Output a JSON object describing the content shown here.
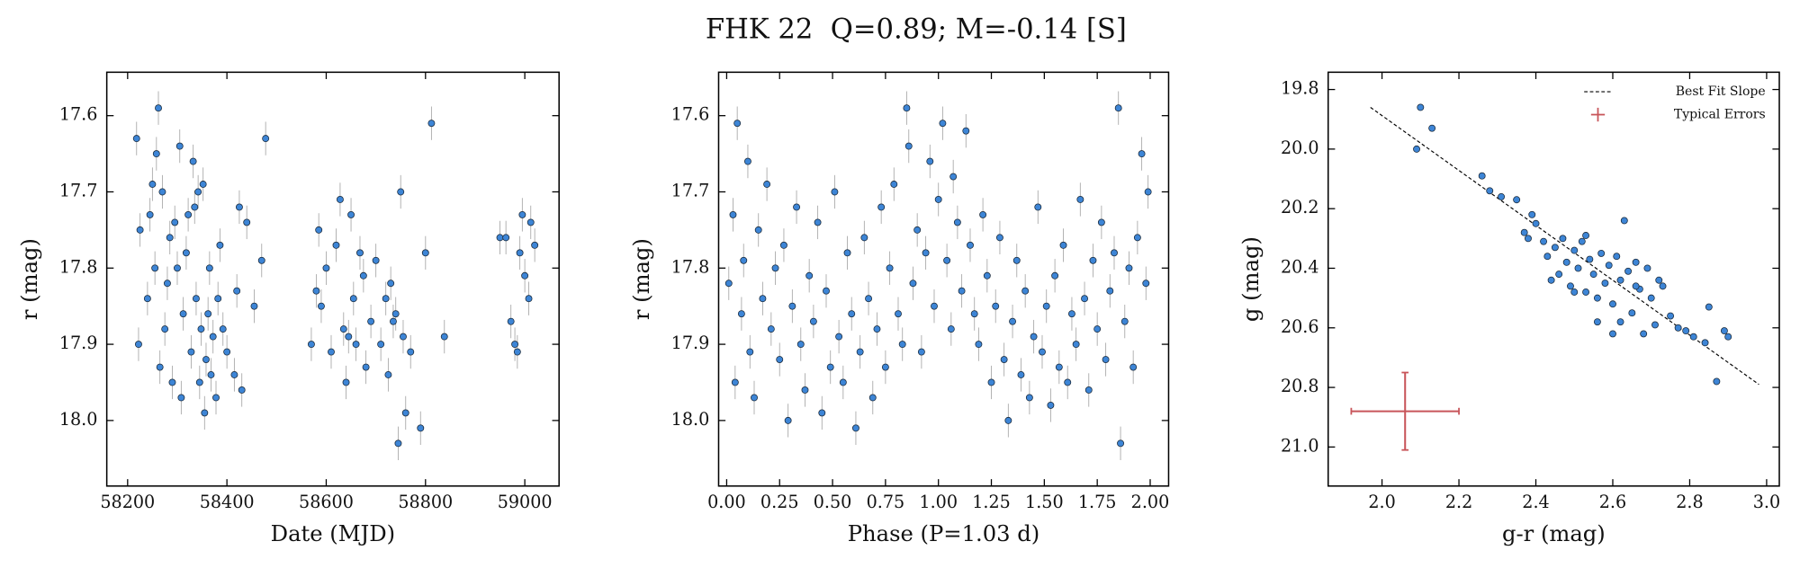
{
  "title": "FHK 22  Q=0.89; M=-0.14 [S]",
  "chart_data": [
    {
      "type": "scatter",
      "xlabel": "Date (MJD)",
      "ylabel": "r (mag)",
      "color": "#3d85d6",
      "yerr": 0.022,
      "xlim": [
        58158,
        59069
      ],
      "ylim": [
        18.086,
        17.543
      ],
      "xticks": [
        58200,
        58400,
        58600,
        58800,
        59000
      ],
      "yticks": [
        17.6,
        17.7,
        17.8,
        17.9,
        {
          "value": 18,
          "label": "18.0"
        }
      ],
      "x": [
        58218,
        58222,
        58225,
        58240,
        58245,
        58250,
        58255,
        58258,
        58262,
        58265,
        58270,
        58275,
        58280,
        58285,
        58290,
        58295,
        58300,
        58305,
        58308,
        58312,
        58318,
        58322,
        58328,
        58332,
        58335,
        58338,
        58342,
        58345,
        58348,
        58352,
        58355,
        58358,
        58362,
        58365,
        58368,
        58372,
        58378,
        58382,
        58386,
        58392,
        58400,
        58415,
        58420,
        58425,
        58430,
        58440,
        58455,
        58470,
        58478,
        58570,
        58580,
        58585,
        58590,
        58600,
        58610,
        58620,
        58628,
        58635,
        58640,
        58645,
        58650,
        58655,
        58660,
        58668,
        58675,
        58680,
        58690,
        58700,
        58710,
        58720,
        58725,
        58730,
        58735,
        58740,
        58745,
        58750,
        58755,
        58760,
        58770,
        58790,
        58800,
        58812,
        58838,
        58950,
        58962,
        58972,
        58980,
        58985,
        58990,
        58995,
        59000,
        59008,
        59012,
        59020
      ],
      "values": [
        17.63,
        17.9,
        17.75,
        17.84,
        17.73,
        17.69,
        17.8,
        17.65,
        17.59,
        17.93,
        17.7,
        17.88,
        17.82,
        17.76,
        17.95,
        17.74,
        17.8,
        17.64,
        17.97,
        17.86,
        17.78,
        17.73,
        17.91,
        17.66,
        17.72,
        17.84,
        17.7,
        17.95,
        17.88,
        17.69,
        17.99,
        17.92,
        17.86,
        17.8,
        17.94,
        17.89,
        17.97,
        17.84,
        17.77,
        17.88,
        17.91,
        17.94,
        17.83,
        17.72,
        17.96,
        17.74,
        17.85,
        17.79,
        17.63,
        17.9,
        17.83,
        17.75,
        17.85,
        17.8,
        17.91,
        17.77,
        17.71,
        17.88,
        17.95,
        17.89,
        17.73,
        17.84,
        17.9,
        17.78,
        17.81,
        17.93,
        17.87,
        17.79,
        17.9,
        17.84,
        17.94,
        17.82,
        17.87,
        17.86,
        18.03,
        17.7,
        17.89,
        17.99,
        17.91,
        18.01,
        17.78,
        17.61,
        17.89,
        17.76,
        17.76,
        17.87,
        17.9,
        17.91,
        17.78,
        17.73,
        17.81,
        17.84,
        17.74,
        17.77
      ]
    },
    {
      "type": "scatter",
      "xlabel": "Phase (P=1.03 d)",
      "ylabel": "r (mag)",
      "color": "#3d85d6",
      "yerr": 0.022,
      "xlim": [
        -0.038,
        2.087
      ],
      "ylim": [
        18.086,
        17.543
      ],
      "xticks": [
        {
          "value": 0,
          "label": "0.00"
        },
        {
          "value": 0.25,
          "label": "0.25"
        },
        {
          "value": 0.5,
          "label": "0.50"
        },
        {
          "value": 0.75,
          "label": "0.75"
        },
        {
          "value": 1,
          "label": "1.00"
        },
        {
          "value": 1.25,
          "label": "1.25"
        },
        {
          "value": 1.5,
          "label": "1.50"
        },
        {
          "value": 1.75,
          "label": "1.75"
        },
        {
          "value": 2,
          "label": "2.00"
        }
      ],
      "yticks": [
        17.6,
        17.7,
        17.8,
        17.9,
        {
          "value": 18,
          "label": "18.0"
        }
      ],
      "x": [
        0.01,
        0.03,
        0.04,
        0.05,
        0.07,
        0.08,
        0.1,
        0.11,
        0.13,
        0.15,
        0.17,
        0.19,
        0.21,
        0.23,
        0.25,
        0.27,
        0.29,
        0.31,
        0.33,
        0.35,
        0.37,
        0.39,
        0.41,
        0.43,
        0.45,
        0.47,
        0.49,
        0.51,
        0.53,
        0.55,
        0.57,
        0.59,
        0.61,
        0.63,
        0.65,
        0.67,
        0.69,
        0.71,
        0.73,
        0.75,
        0.77,
        0.79,
        0.81,
        0.83,
        0.85,
        0.86,
        0.88,
        0.9,
        0.92,
        0.94,
        0.96,
        0.98,
        1.0,
        1.02,
        1.04,
        1.06,
        1.07,
        1.09,
        1.11,
        1.13,
        1.15,
        1.17,
        1.19,
        1.21,
        1.23,
        1.25,
        1.27,
        1.29,
        1.31,
        1.33,
        1.35,
        1.37,
        1.39,
        1.41,
        1.43,
        1.45,
        1.47,
        1.49,
        1.51,
        1.53,
        1.55,
        1.57,
        1.59,
        1.61,
        1.63,
        1.65,
        1.67,
        1.69,
        1.71,
        1.73,
        1.75,
        1.77,
        1.79,
        1.81,
        1.83,
        1.85,
        1.86,
        1.88,
        1.9,
        1.92,
        1.94,
        1.96,
        1.98,
        1.99
      ],
      "values": [
        17.82,
        17.73,
        17.95,
        17.61,
        17.86,
        17.79,
        17.66,
        17.91,
        17.97,
        17.75,
        17.84,
        17.69,
        17.88,
        17.8,
        17.92,
        17.77,
        18.0,
        17.85,
        17.72,
        17.9,
        17.96,
        17.81,
        17.87,
        17.74,
        17.99,
        17.83,
        17.93,
        17.7,
        17.89,
        17.95,
        17.78,
        17.86,
        18.01,
        17.91,
        17.76,
        17.84,
        17.97,
        17.88,
        17.72,
        17.93,
        17.8,
        17.69,
        17.86,
        17.9,
        17.59,
        17.64,
        17.82,
        17.75,
        17.91,
        17.78,
        17.66,
        17.85,
        17.71,
        17.61,
        17.79,
        17.88,
        17.68,
        17.74,
        17.83,
        17.62,
        17.77,
        17.86,
        17.9,
        17.73,
        17.81,
        17.95,
        17.85,
        17.76,
        17.92,
        18.0,
        17.87,
        17.79,
        17.94,
        17.83,
        17.97,
        17.89,
        17.72,
        17.91,
        17.85,
        17.98,
        17.81,
        17.93,
        17.77,
        17.95,
        17.86,
        17.9,
        17.71,
        17.84,
        17.96,
        17.79,
        17.88,
        17.74,
        17.92,
        17.83,
        17.78,
        17.59,
        18.03,
        17.87,
        17.8,
        17.93,
        17.76,
        17.65,
        17.82,
        17.7
      ]
    },
    {
      "type": "scatter",
      "xlabel": "g-r (mag)",
      "ylabel": "g (mag)",
      "color": "#3d85d6",
      "legend": "upper right",
      "xlim": [
        1.86,
        3.033
      ],
      "ylim": [
        21.131,
        19.742
      ],
      "xticks": [
        {
          "value": 2,
          "label": "2.0"
        },
        2.2,
        2.4,
        2.6,
        2.8,
        {
          "value": 3,
          "label": "3.0"
        }
      ],
      "yticks": [
        19.8,
        {
          "value": 20,
          "label": "20.0"
        },
        20.2,
        20.4,
        20.6,
        20.8,
        {
          "value": 21,
          "label": "21.0"
        }
      ],
      "x": [
        2.09,
        2.1,
        2.13,
        2.26,
        2.28,
        2.31,
        2.35,
        2.37,
        2.38,
        2.39,
        2.4,
        2.42,
        2.43,
        2.45,
        2.46,
        2.47,
        2.48,
        2.49,
        2.5,
        2.51,
        2.52,
        2.53,
        2.54,
        2.55,
        2.56,
        2.57,
        2.58,
        2.59,
        2.6,
        2.61,
        2.62,
        2.63,
        2.64,
        2.65,
        2.66,
        2.67,
        2.68,
        2.69,
        2.7,
        2.71,
        2.72,
        2.73,
        2.75,
        2.77,
        2.79,
        2.81,
        2.84,
        2.85,
        2.87,
        2.89,
        2.9,
        2.56,
        2.6,
        2.53,
        2.44,
        2.5,
        2.62,
        2.66
      ],
      "values": [
        20.0,
        19.86,
        19.93,
        20.09,
        20.14,
        20.16,
        20.17,
        20.28,
        20.3,
        20.22,
        20.25,
        20.31,
        20.36,
        20.33,
        20.42,
        20.3,
        20.38,
        20.46,
        20.34,
        20.4,
        20.31,
        20.48,
        20.37,
        20.42,
        20.5,
        20.35,
        20.45,
        20.39,
        20.52,
        20.36,
        20.44,
        20.24,
        20.41,
        20.55,
        20.38,
        20.47,
        20.62,
        20.4,
        20.5,
        20.59,
        20.44,
        20.46,
        20.56,
        20.6,
        20.61,
        20.63,
        20.65,
        20.53,
        20.78,
        20.61,
        20.63,
        20.58,
        20.62,
        20.29,
        20.44,
        20.48,
        20.58,
        20.46
      ],
      "fit_line": {
        "name": "Best Fit Slope",
        "x": [
          1.97,
          2.98
        ],
        "y": [
          19.86,
          20.79
        ]
      },
      "typical_error": {
        "name": "Typical Errors",
        "color": "#c8555a",
        "x": 2.06,
        "y": 20.88,
        "xerr": 0.14,
        "yerr": 0.13
      }
    }
  ]
}
